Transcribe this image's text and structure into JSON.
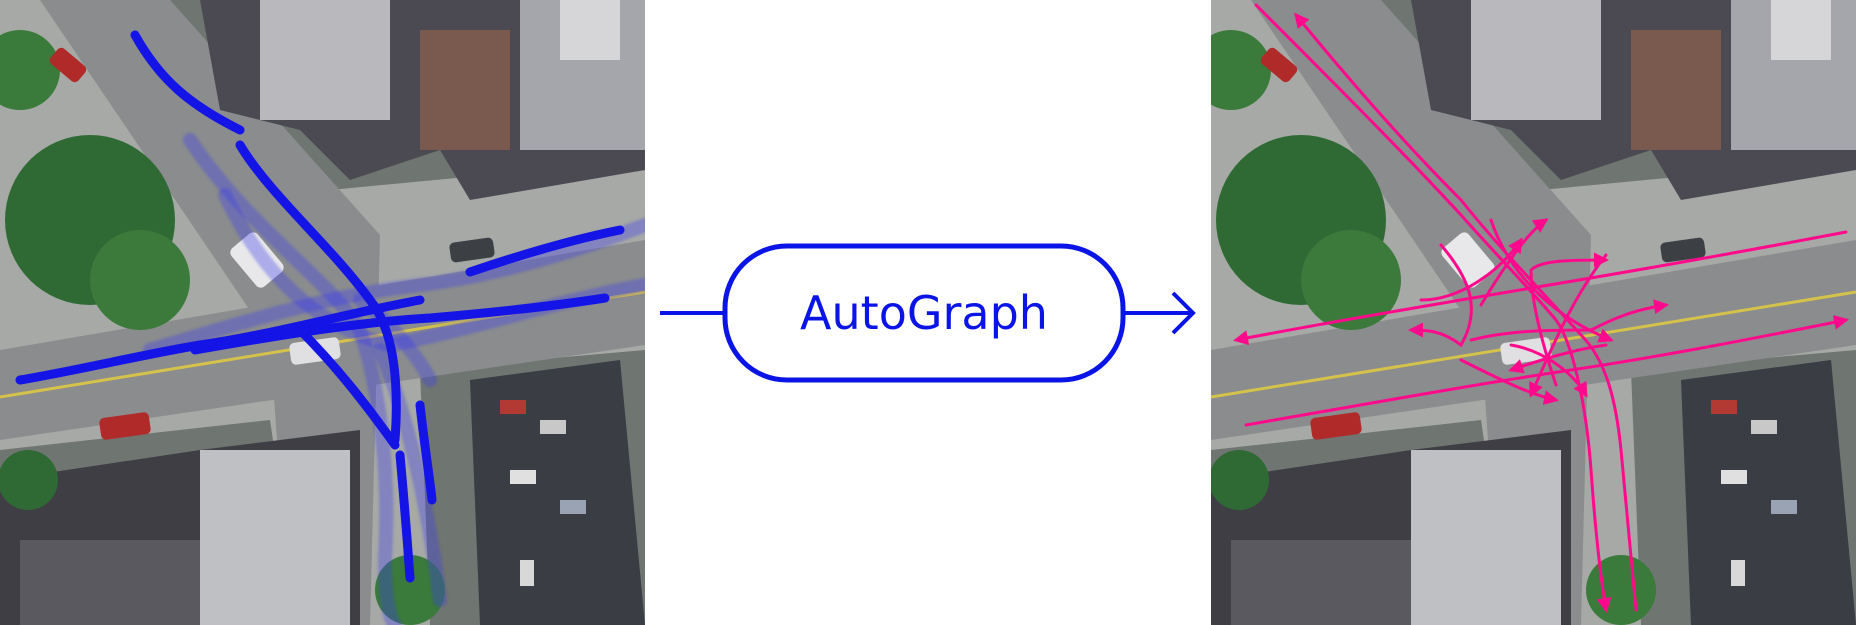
{
  "process_box": {
    "label": "AutoGraph"
  },
  "colors": {
    "tracklets": "#1414e6",
    "graph_edges": "#ff0a8c",
    "flow": "#0a14e6",
    "road": "#8a8c8e",
    "lane_marking": "#d4c24a",
    "tree": "#2f6a34",
    "roof_dark": "#4b4a52",
    "roof_light": "#b9b9bd"
  },
  "icons": {
    "input_arrow": "line-connector-icon",
    "output_arrow": "arrowhead-right-icon"
  }
}
